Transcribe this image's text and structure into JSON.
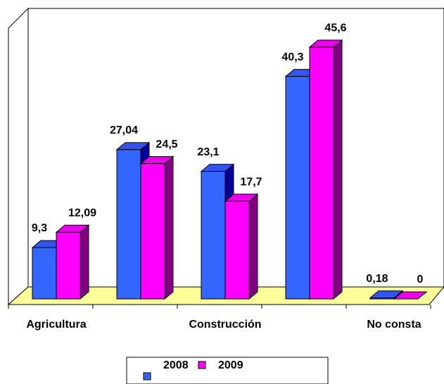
{
  "chart_data": {
    "type": "bar3d",
    "categories": [
      "Agricultura",
      null,
      "Construcción",
      null,
      "No consta"
    ],
    "series": [
      {
        "name": "2008",
        "color": "#3366ff",
        "values": [
          9.3,
          27.04,
          23.1,
          40.3,
          0.18
        ],
        "value_labels": [
          "9,3",
          "27,04",
          "23,1",
          "40,3",
          "0,18"
        ]
      },
      {
        "name": "2009",
        "color": "#ff00ff",
        "values": [
          12.09,
          24.5,
          17.7,
          45.6,
          0
        ],
        "value_labels": [
          "12,09",
          "24,5",
          "17,7",
          "45,6",
          "0"
        ]
      }
    ],
    "ylim": [
      0,
      50
    ],
    "legend": "bottom"
  }
}
